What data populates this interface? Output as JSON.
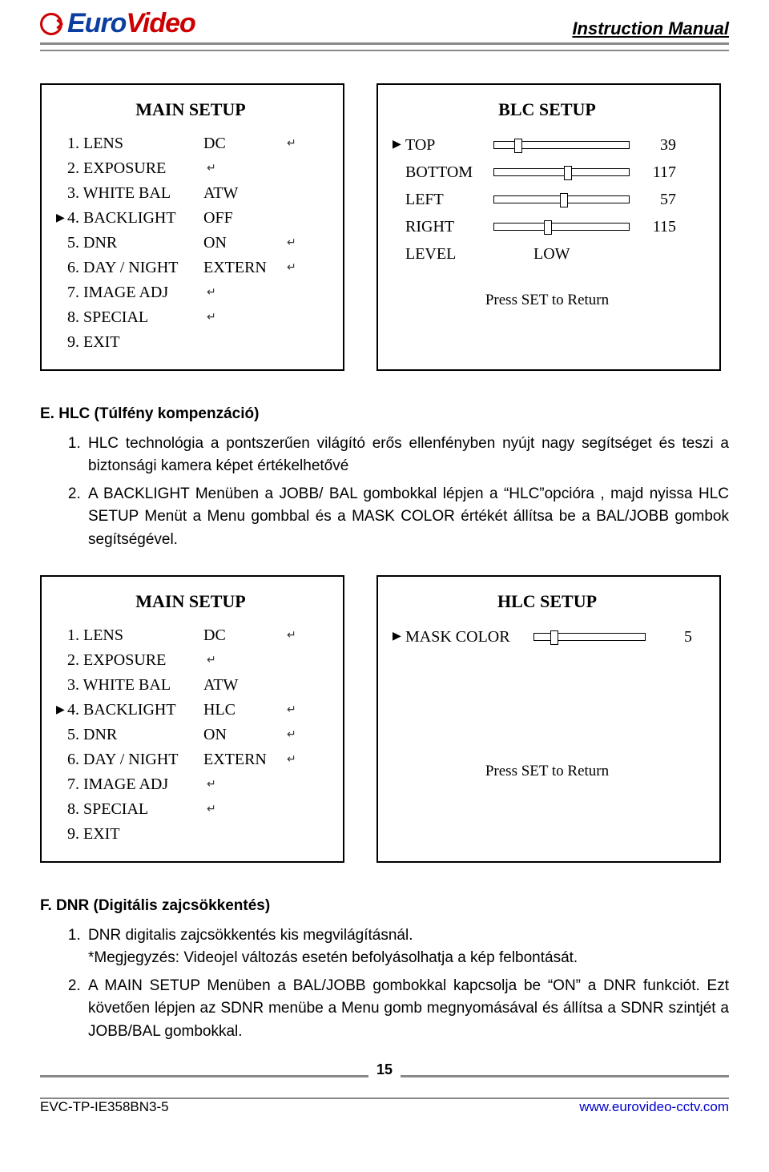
{
  "header": {
    "logo_euro": "Euro",
    "logo_video": "Video",
    "right": "Instruction Manual"
  },
  "mainSetup1": {
    "title": "MAIN SETUP",
    "cursorIndex": 3,
    "items": [
      {
        "n": "1.",
        "label": "LENS",
        "value": "DC",
        "enter": true
      },
      {
        "n": "2.",
        "label": "EXPOSURE",
        "value": "",
        "enter": true,
        "enterAfterLabel": true
      },
      {
        "n": "3.",
        "label": "WHITE BAL",
        "value": "ATW",
        "enter": false
      },
      {
        "n": "4.",
        "label": "BACKLIGHT",
        "value": "OFF",
        "enter": false
      },
      {
        "n": "5.",
        "label": "DNR",
        "value": "ON",
        "enter": true
      },
      {
        "n": "6.",
        "label": "DAY / NIGHT",
        "value": "EXTERN",
        "enter": true
      },
      {
        "n": "7.",
        "label": "IMAGE ADJ",
        "value": "",
        "enter": true,
        "enterAfterLabel": true
      },
      {
        "n": "8.",
        "label": "SPECIAL",
        "value": "",
        "enter": true,
        "enterAfterLabel": true
      },
      {
        "n": "9.",
        "label": "EXIT",
        "value": "",
        "enter": false
      }
    ]
  },
  "blcSetup": {
    "title": "BLC SETUP",
    "cursorIndex": 0,
    "rows": [
      {
        "label": "TOP",
        "value": 39,
        "thumbPercent": 18
      },
      {
        "label": "BOTTOM",
        "value": 117,
        "thumbPercent": 55
      },
      {
        "label": "LEFT",
        "value": 57,
        "thumbPercent": 52
      },
      {
        "label": "RIGHT",
        "value": 115,
        "thumbPercent": 40
      }
    ],
    "levelLabel": "LEVEL",
    "levelValue": "LOW",
    "return": "Press SET to Return"
  },
  "sectionE": {
    "heading": "E.  HLC (Túlfény kompenzáció)",
    "items": [
      "HLC technológia a pontszerűen világító erős ellenfényben nyújt nagy segítséget és teszi a biztonsági kamera képet értékelhetővé",
      "A BACKLIGHT Menüben a JOBB/ BAL gombokkal lépjen a “HLC”opcióra , majd nyissa HLC SETUP Menüt a Menu gombbal és a MASK COLOR értékét állítsa be a BAL/JOBB gombok segítségével."
    ]
  },
  "mainSetup2": {
    "title": "MAIN SETUP",
    "cursorIndex": 3,
    "items": [
      {
        "n": "1.",
        "label": "LENS",
        "value": "DC",
        "enter": true
      },
      {
        "n": "2.",
        "label": "EXPOSURE",
        "value": "",
        "enter": true,
        "enterAfterLabel": true
      },
      {
        "n": "3.",
        "label": "WHITE BAL",
        "value": "ATW",
        "enter": false
      },
      {
        "n": "4.",
        "label": "BACKLIGHT",
        "value": "HLC",
        "enter": true
      },
      {
        "n": "5.",
        "label": "DNR",
        "value": "ON",
        "enter": true
      },
      {
        "n": "6.",
        "label": "DAY / NIGHT",
        "value": "EXTERN",
        "enter": true
      },
      {
        "n": "7.",
        "label": "IMAGE ADJ",
        "value": "",
        "enter": true,
        "enterAfterLabel": true
      },
      {
        "n": "8.",
        "label": "SPECIAL",
        "value": "",
        "enter": true,
        "enterAfterLabel": true
      },
      {
        "n": "9.",
        "label": "EXIT",
        "value": "",
        "enter": false
      }
    ]
  },
  "hlcSetup": {
    "title": "HLC SETUP",
    "rowLabel": "MASK COLOR",
    "rowValue": 5,
    "thumbPercent": 18,
    "return": "Press SET to Return"
  },
  "sectionF": {
    "heading": "F.  DNR (Digitális zajcsökkentés)",
    "items": [
      "DNR digitalis zajcsökkentés kis megvilágításnál.\n*Megjegyzés: Videojel változás esetén befolyásolhatja a kép felbontását.",
      "A MAIN SETUP Menüben a BAL/JOBB gombokkal kapcsolja be “ON” a DNR funkciót. Ezt követően lépjen az SDNR menübe a Menu gomb megnyomásával és állítsa a SDNR szintjét a JOBB/BAL gombokkal."
    ]
  },
  "footer": {
    "pagenum": "15",
    "model": "EVC-TP-IE358BN3-5",
    "url": "www.eurovideo-cctv.com"
  },
  "style": {
    "border": "#000000",
    "ruleColor": "#888888",
    "logoBlue": "#0a3ea0",
    "logoRed": "#cc0000",
    "link": "#0000cc"
  }
}
